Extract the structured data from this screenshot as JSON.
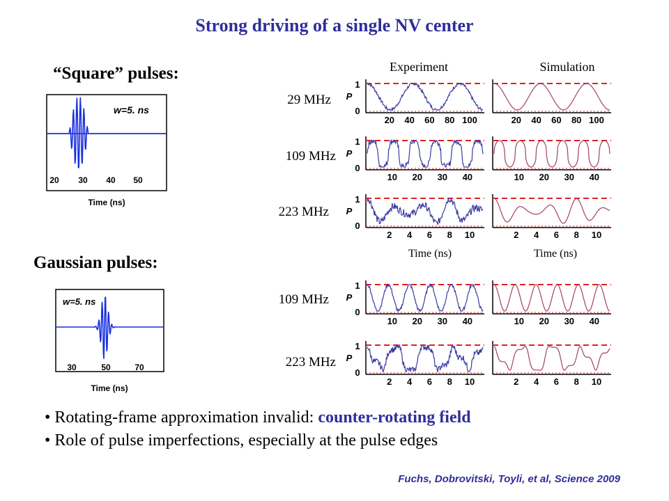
{
  "title": "Strong driving of a single NV center",
  "square": {
    "heading": "“Square” pulses:",
    "inset": {
      "label": "w=5. ns",
      "xlabel": "Time (ns)",
      "ticks": [
        "20",
        "30",
        "40",
        "50"
      ]
    }
  },
  "gaussian": {
    "heading": "Gaussian pulses:",
    "inset": {
      "label": "w=5. ns",
      "xlabel": "Time (ns)",
      "ticks": [
        "30",
        "50",
        "70"
      ]
    }
  },
  "columns": {
    "experiment": "Experiment",
    "simulation": "Simulation"
  },
  "time_label": "Time (ns)",
  "panels": {
    "ylabel": "P",
    "ytick_top": "1",
    "ytick_bottom": "0",
    "rows": [
      {
        "freq": "29 MHz",
        "ticks": [
          "20",
          "40",
          "60",
          "80",
          "100"
        ]
      },
      {
        "freq": "109 MHz",
        "ticks": [
          "10",
          "20",
          "30",
          "40"
        ]
      },
      {
        "freq": "223 MHz",
        "ticks": [
          "2",
          "4",
          "6",
          "8",
          "10"
        ]
      },
      {
        "freq": "109 MHz",
        "ticks": [
          "10",
          "20",
          "30",
          "40"
        ]
      },
      {
        "freq": "223 MHz",
        "ticks": [
          "2",
          "4",
          "6",
          "8",
          "10"
        ]
      }
    ]
  },
  "bullets": [
    {
      "prefix": "Rotating-frame approximation invalid: ",
      "highlight": "counter-rotating field"
    },
    {
      "prefix": "Role of pulse imperfections, especially at the pulse edges",
      "highlight": ""
    }
  ],
  "citation": "Fuchs, Dobrovitski, Toyli, et al, Science 2009",
  "colors": {
    "title": "#2e2e9a",
    "experiment": "#3a3aa0",
    "simulation": "#a0406a",
    "reference": "#e02020",
    "pulse": "#1a2ee0"
  }
}
